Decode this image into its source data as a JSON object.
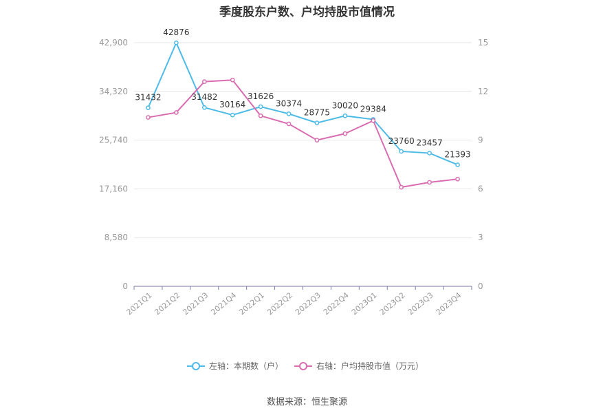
{
  "chart_data": {
    "type": "line",
    "title": "季度股东户数、户均持股市值情况",
    "categories": [
      "2021Q1",
      "2021Q2",
      "2021Q3",
      "2021Q4",
      "2022Q1",
      "2022Q2",
      "2022Q3",
      "2022Q4",
      "2023Q1",
      "2023Q2",
      "2023Q3",
      "2023Q4"
    ],
    "left_axis": {
      "ticks": [
        "0",
        "8,580",
        "17,160",
        "25,740",
        "34,320",
        "42,900"
      ],
      "ylim": [
        0,
        42900
      ]
    },
    "right_axis": {
      "ticks": [
        "0",
        "3",
        "6",
        "9",
        "12",
        "15"
      ],
      "ylim": [
        0,
        15
      ]
    },
    "series": [
      {
        "name": "左轴：本期数（户）",
        "axis": "left",
        "color": "#4dbbe8",
        "values": [
          31432,
          42876,
          31482,
          30164,
          31626,
          30374,
          28775,
          30020,
          29384,
          23760,
          23457,
          21393
        ],
        "labels": [
          "31432",
          "42876",
          "31482",
          "30164",
          "31626",
          "30374",
          "28775",
          "30020",
          "29384",
          "23760",
          "23457",
          "21393"
        ]
      },
      {
        "name": "右轴：户均持股市值（万元）",
        "axis": "right",
        "color": "#d96cb0",
        "values": [
          10.4,
          10.7,
          12.6,
          12.7,
          10.5,
          10.0,
          9.0,
          9.4,
          10.2,
          6.1,
          6.4,
          6.6
        ]
      }
    ],
    "legend_position": "bottom",
    "grid": true
  },
  "footer": {
    "source": "数据来源：恒生聚源"
  }
}
